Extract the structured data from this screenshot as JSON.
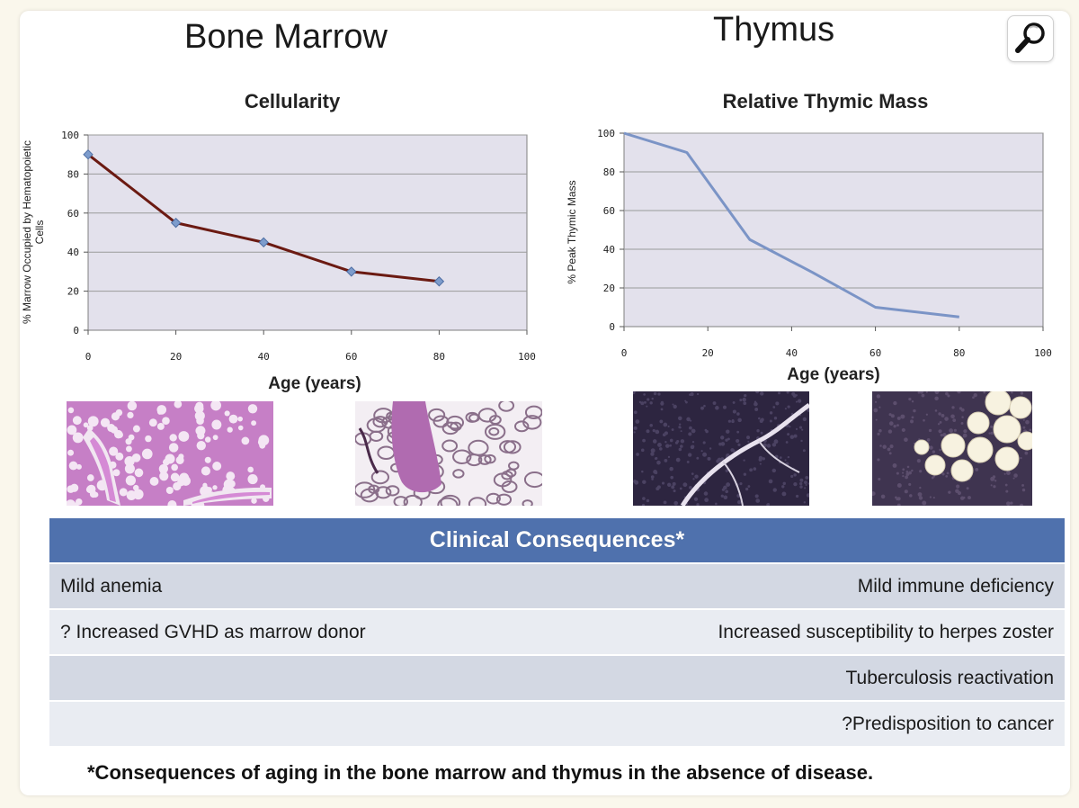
{
  "headings": {
    "bone_marrow": "Bone Marrow",
    "thymus": "Thymus"
  },
  "chart_data": [
    {
      "type": "line",
      "title": "Cellularity",
      "xlabel": "Age (years)",
      "ylabel_lines": [
        "% Marrow Occupied by Hematopoietic",
        "Cells"
      ],
      "x": [
        0,
        20,
        40,
        60,
        80
      ],
      "series": [
        {
          "values": [
            90,
            55,
            45,
            30,
            25
          ]
        }
      ],
      "xlim": [
        0,
        100
      ],
      "ylim": [
        0,
        100
      ],
      "xticks": [
        "0",
        "20",
        "40",
        "60",
        "80",
        "100"
      ],
      "yticks": [
        "0",
        "20",
        "40",
        "60",
        "80",
        "100"
      ],
      "markers": true,
      "grid": true,
      "colors": {
        "line": "#6b1a12",
        "marker": "#7d9ccc",
        "plot_bg": "#e3e1ec",
        "grid": "#9a9a9a"
      }
    },
    {
      "type": "line",
      "title": "Relative Thymic Mass",
      "xlabel": "Age (years)",
      "ylabel_lines": [
        "% Peak Thymic Mass"
      ],
      "x": [
        0,
        15,
        30,
        45,
        60,
        80
      ],
      "series": [
        {
          "values": [
            100,
            90,
            45,
            28,
            10,
            5
          ]
        }
      ],
      "xlim": [
        0,
        100
      ],
      "ylim": [
        0,
        100
      ],
      "xticks": [
        "0",
        "20",
        "40",
        "60",
        "80",
        "100"
      ],
      "yticks": [
        "0",
        "20",
        "40",
        "60",
        "80",
        "100"
      ],
      "markers": false,
      "grid": true,
      "colors": {
        "line": "#7b94c6",
        "plot_bg": "#e3e1ec",
        "grid": "#9a9a9a"
      }
    }
  ],
  "table": {
    "header": "Clinical Consequences*",
    "rows": [
      {
        "left": "Mild anemia",
        "right": "Mild immune deficiency"
      },
      {
        "left": "? Increased GVHD as marrow donor",
        "right": "Increased susceptibility to herpes zoster"
      },
      {
        "left": "",
        "right": "Tuberculosis reactivation"
      },
      {
        "left": "",
        "right": "?Predisposition to cancer"
      }
    ]
  },
  "footnote": "*Consequences of aging in the bone marrow and thymus in the absence of disease.",
  "icons": {
    "zoom": "magnifier-icon"
  }
}
